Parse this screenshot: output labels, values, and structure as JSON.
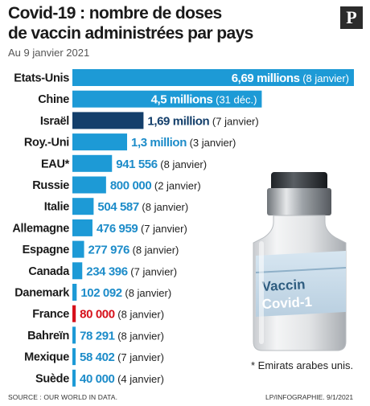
{
  "header": {
    "title_line1": "Covid-19 : nombre de doses",
    "title_line2": "de vaccin administrées par pays",
    "subtitle": "Au 9 janvier 2021",
    "logo_letter": "P"
  },
  "vial": {
    "label_line1": "Vaccin",
    "label_line2": "Covid-1"
  },
  "footer": {
    "footnote": "* Emirats arabes unis.",
    "source": "SOURCE : OUR WORLD IN DATA.",
    "credit": "LP/INFOGRAPHIE.  9/1/2021"
  },
  "colors": {
    "default_bar": "#1d9ad6",
    "israel_bar": "#143f6b",
    "france_bar": "#d6111b",
    "inside_text": "#ffffff",
    "outside_value": "#1d8cc9",
    "outside_note": "#222222"
  },
  "chart_data": {
    "type": "bar",
    "orientation": "horizontal",
    "xlim": [
      0,
      6.69
    ],
    "unit": "millions de doses",
    "categories": [
      "Etats-Unis",
      "Chine",
      "Israël",
      "Roy.-Uni",
      "EAU*",
      "Russie",
      "Italie",
      "Allemagne",
      "Espagne",
      "Canada",
      "Danemark",
      "France",
      "Bahreïn",
      "Mexique",
      "Suède"
    ],
    "values": [
      6.69,
      4.5,
      1.69,
      1.3,
      0.941556,
      0.8,
      0.504587,
      0.476959,
      0.277976,
      0.234396,
      0.102092,
      0.08,
      0.078291,
      0.058402,
      0.04
    ],
    "value_labels": [
      "6,69 millions",
      "4,5 millions",
      "1,69 million",
      "1,3 million",
      "941 556",
      "800 000",
      "504 587",
      "476 959",
      "277 976",
      "234 396",
      "102 092",
      "80 000",
      "78 291",
      "58 402",
      "40 000"
    ],
    "date_labels": [
      "(8 janvier)",
      "(31 déc.)",
      "(7 janvier)",
      "(3 janvier)",
      "(8 janvier)",
      "(2 janvier)",
      "(8 janvier)",
      "(7 janvier)",
      "(8 janvier)",
      "(7 janvier)",
      "(8 janvier)",
      "(8 janvier)",
      "(8 janvier)",
      "(7 janvier)",
      "(4 janvier)"
    ],
    "highlight": {
      "Israël": "israel_bar",
      "France": "france_bar"
    }
  }
}
